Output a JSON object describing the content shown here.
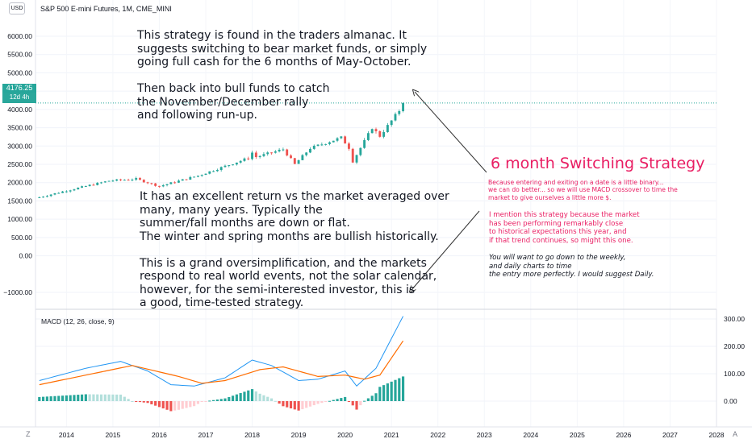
{
  "header": {
    "currency_button": "USD",
    "symbol_title": "S&P 500 E-mini Futures, 1M, CME_MINI"
  },
  "price_axis": {
    "ticks": [
      "6000.00",
      "5500.00",
      "5000.00",
      "4500.00",
      "4000.00",
      "3500.00",
      "3000.00",
      "2500.00",
      "2000.00",
      "1500.00",
      "1000.00",
      "500.00",
      "0.00",
      "−1000.00"
    ],
    "current_price": "4176.25",
    "countdown": "12d 4h"
  },
  "macd_panel": {
    "label": "MACD (12, 26, close, 9)",
    "ticks": [
      "300.00",
      "200.00",
      "100.00",
      "0.00"
    ]
  },
  "time_axis": {
    "ticks": [
      "2014",
      "2015",
      "2016",
      "2017",
      "2018",
      "2019",
      "2020",
      "2021",
      "2022",
      "2023",
      "2024",
      "2025",
      "2026",
      "2027",
      "2028"
    ],
    "left_button": "Z",
    "right_button": "A"
  },
  "annotations": {
    "top_lines": [
      "This strategy is found in the traders almanac. It",
      "suggests switching to bear market funds, or simply",
      "going full cash for the 6 months of May-October.",
      "",
      "Then back into bull funds to catch",
      "the November/December rally",
      "and following run-up."
    ],
    "middle_lines": [
      "It has an excellent return vs the market averaged over",
      "many, many years. Typically the",
      "summer/fall months are down or flat.",
      "The winter and spring months are bullish historically.",
      "",
      "This is a grand oversimplification, and the markets",
      "respond to real world events, not the solar calendar,",
      "however, for the semi-interested investor, this is",
      "a good, time-tested strategy."
    ],
    "strategy_title": "6 month Switching Strategy",
    "pink_lines_1": [
      "Because entering and exiting on a date is a little binary...",
      "we can do better... so we will use MACD crossover to time the",
      "market to give ourselves a little more $."
    ],
    "pink_lines_2": [
      "I mention this strategy because the market",
      "has been performing remarkably close",
      "to historical expectations this year, and",
      "if that trend continues, so might this one."
    ],
    "italic_lines": [
      "You will want to go down to the weekly,",
      "and daily charts to time",
      "the entry more perfectly. I would suggest Daily."
    ]
  },
  "colors": {
    "up": "#26a69a",
    "down": "#ef5350",
    "macd_line": "#2196f3",
    "signal_line": "#ff6d00",
    "accent_pink": "#e91e63",
    "arrow": "#333333"
  },
  "chart_data": {
    "type": "candlestick",
    "symbol": "S&P 500 E-mini Futures",
    "interval": "1M",
    "x_range": [
      "2013-05",
      "2028-01"
    ],
    "y_range": [
      -1000,
      6000
    ],
    "price_waypoints": [
      {
        "date": "2013-06",
        "close": 1600
      },
      {
        "date": "2014-01",
        "close": 1780
      },
      {
        "date": "2014-12",
        "close": 2050
      },
      {
        "date": "2015-07",
        "close": 2100
      },
      {
        "date": "2016-01",
        "close": 1900
      },
      {
        "date": "2016-02",
        "close": 1930
      },
      {
        "date": "2016-11",
        "close": 2190
      },
      {
        "date": "2017-12",
        "close": 2670
      },
      {
        "date": "2018-01",
        "close": 2820
      },
      {
        "date": "2018-02",
        "close": 2700
      },
      {
        "date": "2018-09",
        "close": 2910
      },
      {
        "date": "2018-12",
        "close": 2500
      },
      {
        "date": "2019-04",
        "close": 2940
      },
      {
        "date": "2019-12",
        "close": 3230
      },
      {
        "date": "2020-02",
        "close": 2950
      },
      {
        "date": "2020-03",
        "close": 2580
      },
      {
        "date": "2020-08",
        "close": 3500
      },
      {
        "date": "2020-10",
        "close": 3270
      },
      {
        "date": "2021-03",
        "close": 3970
      },
      {
        "date": "2021-04",
        "close": 4176
      }
    ],
    "current_price": 4176.25,
    "macd": {
      "range": [
        -60,
        320
      ],
      "macd_waypoints": [
        {
          "date": "2013-06",
          "v": 75
        },
        {
          "date": "2014-06",
          "v": 120
        },
        {
          "date": "2015-03",
          "v": 145
        },
        {
          "date": "2015-10",
          "v": 110
        },
        {
          "date": "2016-04",
          "v": 60
        },
        {
          "date": "2016-10",
          "v": 55
        },
        {
          "date": "2017-06",
          "v": 85
        },
        {
          "date": "2018-01",
          "v": 150
        },
        {
          "date": "2018-06",
          "v": 130
        },
        {
          "date": "2019-01",
          "v": 75
        },
        {
          "date": "2019-06",
          "v": 80
        },
        {
          "date": "2020-01",
          "v": 110
        },
        {
          "date": "2020-04",
          "v": 55
        },
        {
          "date": "2020-09",
          "v": 120
        },
        {
          "date": "2021-04",
          "v": 310
        }
      ],
      "signal_waypoints": [
        {
          "date": "2013-06",
          "v": 60
        },
        {
          "date": "2014-06",
          "v": 95
        },
        {
          "date": "2015-06",
          "v": 130
        },
        {
          "date": "2016-06",
          "v": 90
        },
        {
          "date": "2016-12",
          "v": 65
        },
        {
          "date": "2017-06",
          "v": 75
        },
        {
          "date": "2018-03",
          "v": 115
        },
        {
          "date": "2018-09",
          "v": 125
        },
        {
          "date": "2019-06",
          "v": 90
        },
        {
          "date": "2020-01",
          "v": 95
        },
        {
          "date": "2020-06",
          "v": 80
        },
        {
          "date": "2020-10",
          "v": 95
        },
        {
          "date": "2021-04",
          "v": 220
        }
      ]
    }
  }
}
